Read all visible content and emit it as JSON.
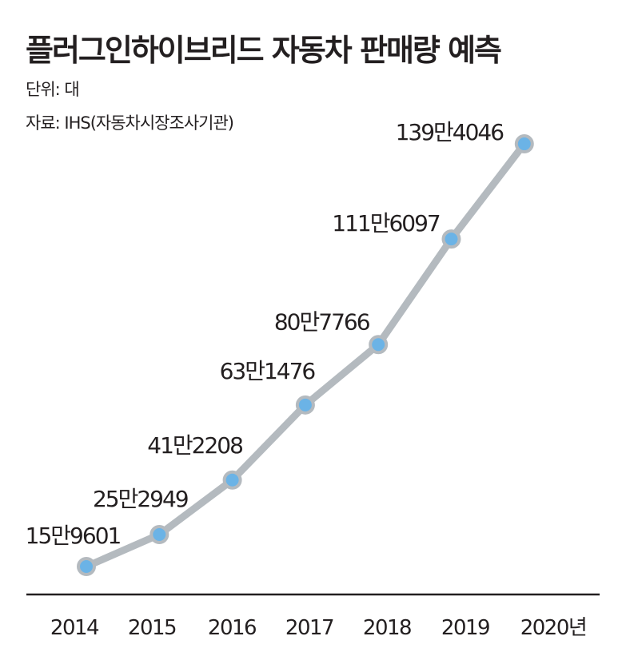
{
  "chart_data": {
    "type": "line",
    "title": "플러그인하이브리드 자동차 판매량 예측",
    "unit_label": "단위: 대",
    "source_label": "자료: IHS(자동차시장조사기관)",
    "categories": [
      "2014",
      "2015",
      "2016",
      "2017",
      "2018",
      "2019",
      "2020년"
    ],
    "values": [
      159601,
      252949,
      412208,
      631476,
      807766,
      1116097,
      1394046
    ],
    "data_labels": [
      "15만9601",
      "25만2949",
      "41만2208",
      "63만1476",
      "80만7766",
      "111만6097",
      "139만4046"
    ],
    "xlabel": "",
    "ylabel": "",
    "grid": false,
    "colors": {
      "line": "#b4babf",
      "marker": "#6bb3e6",
      "marker_stroke": "#b4babf",
      "axis": "#231f20"
    }
  }
}
